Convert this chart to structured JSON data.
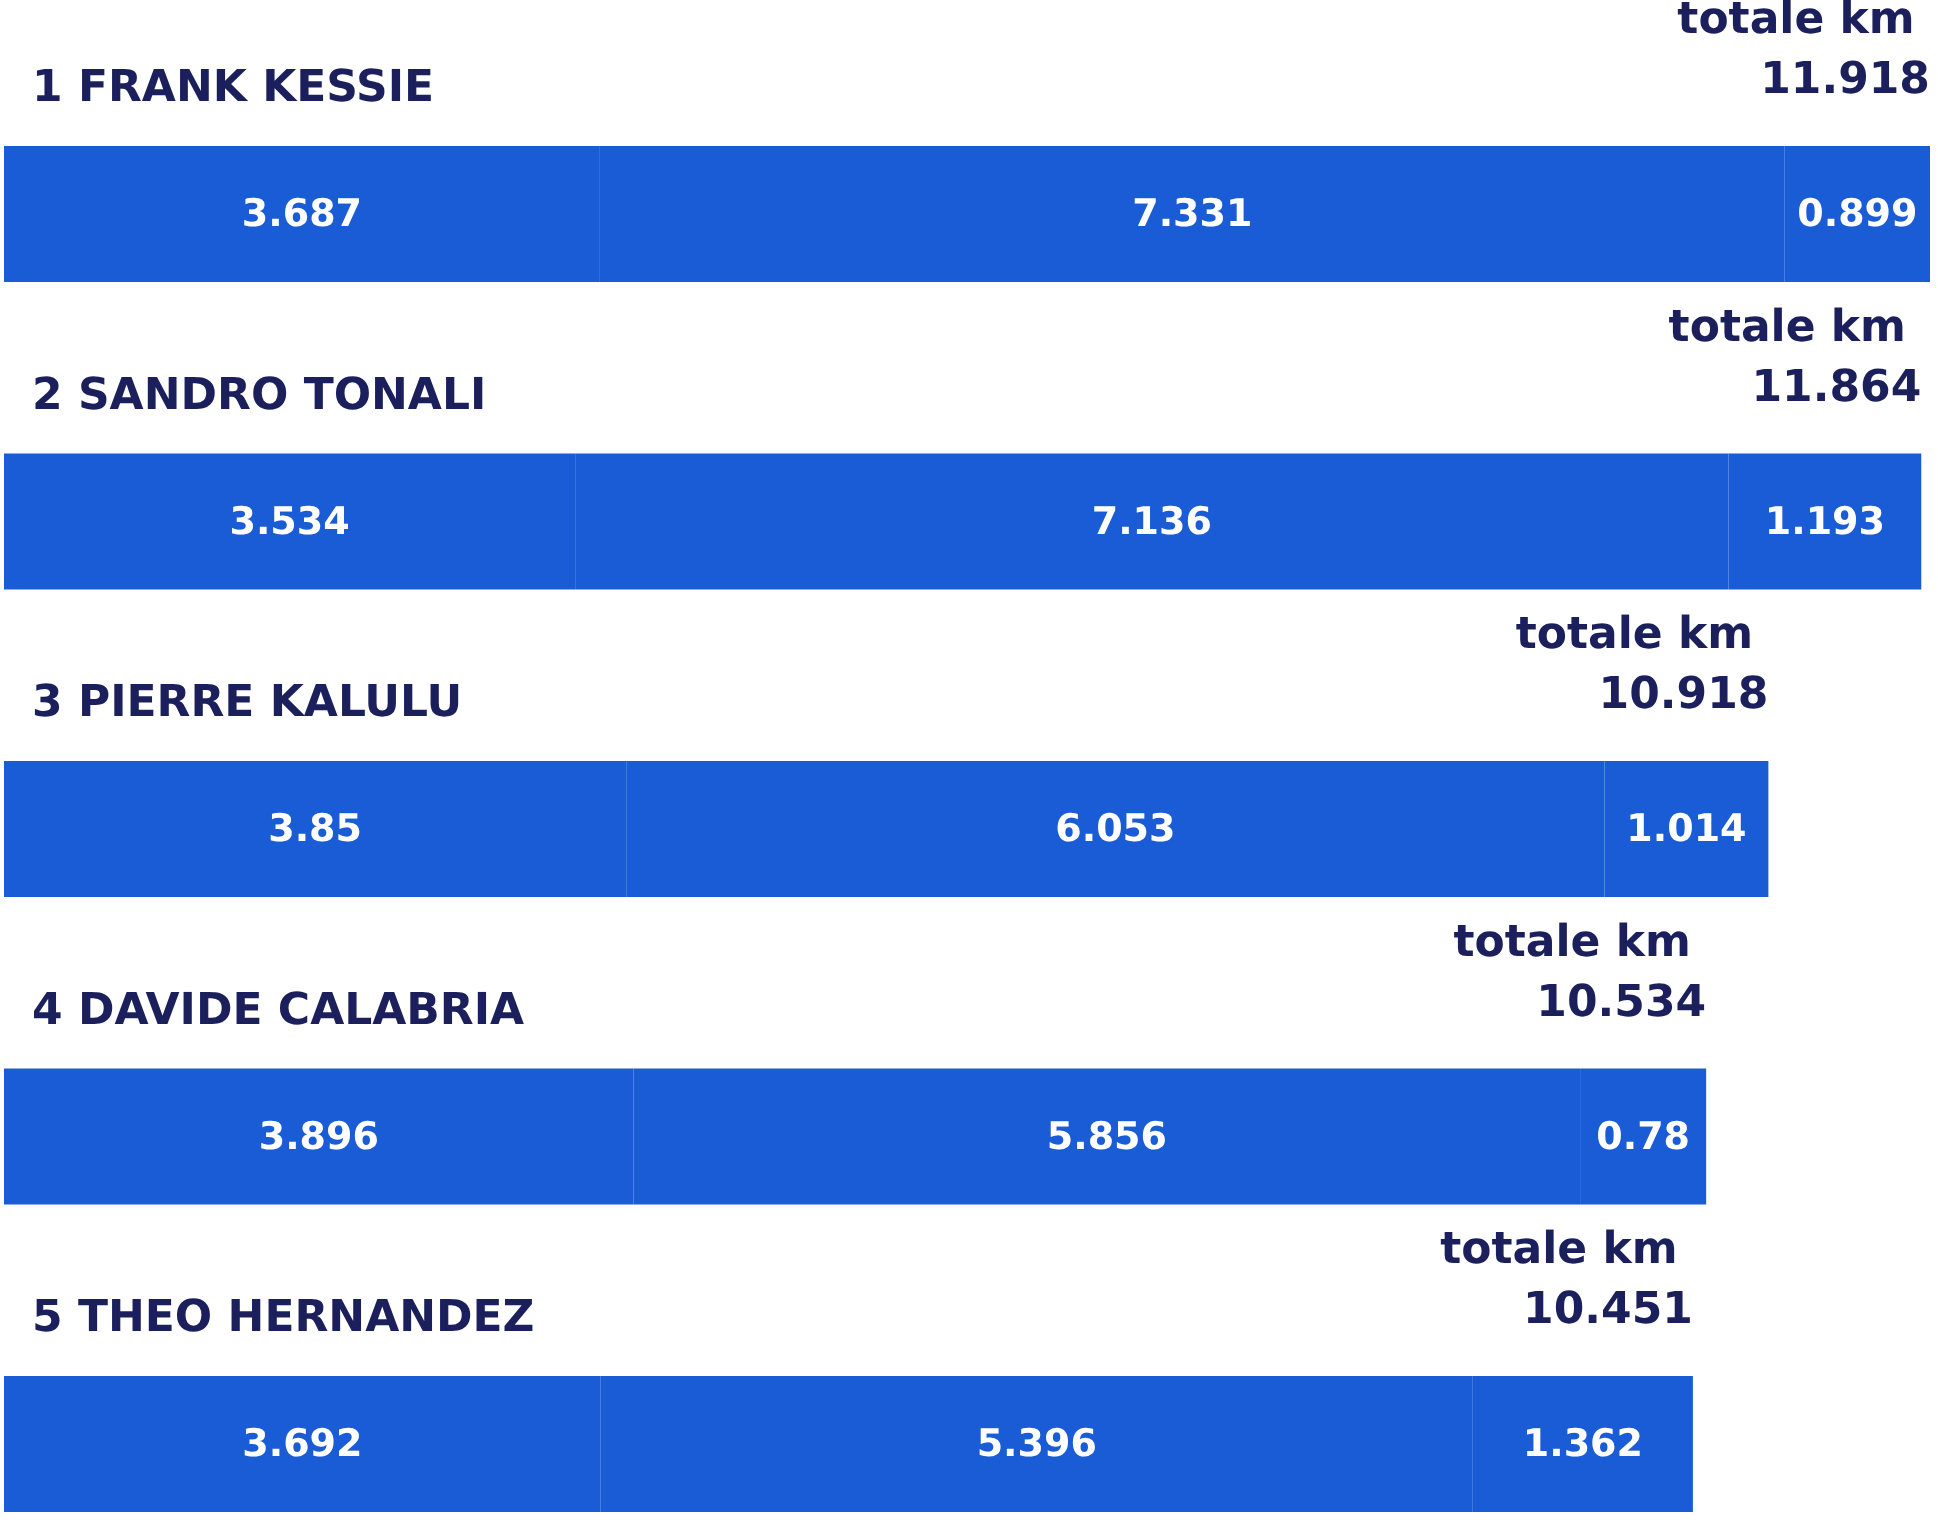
{
  "chart_data": {
    "type": "bar",
    "orientation": "horizontal",
    "stacked": true,
    "categories": [
      "1 FRANK KESSIE",
      "2 SANDRO TONALI",
      "3 PIERRE KALULU",
      "4 DAVIDE CALABRIA",
      "5 THEO HERNANDEZ"
    ],
    "series": [
      {
        "color": "#1a5cd6",
        "values": [
          3.687,
          3.534,
          3.85,
          3.896,
          3.692
        ]
      },
      {
        "color": "#1a5cd6",
        "values": [
          7.331,
          7.136,
          6.053,
          5.856,
          5.396
        ]
      },
      {
        "color": "#1a5cd6",
        "values": [
          0.899,
          1.193,
          1.014,
          0.78,
          1.362
        ]
      }
    ],
    "data_labels": true,
    "totals": [
      "totale km 11.918",
      "totale km 11.864",
      "totale km 10.918",
      "totale km 10.534",
      "totale km 10.451"
    ],
    "tick_labels": "y",
    "grid": false
  }
}
